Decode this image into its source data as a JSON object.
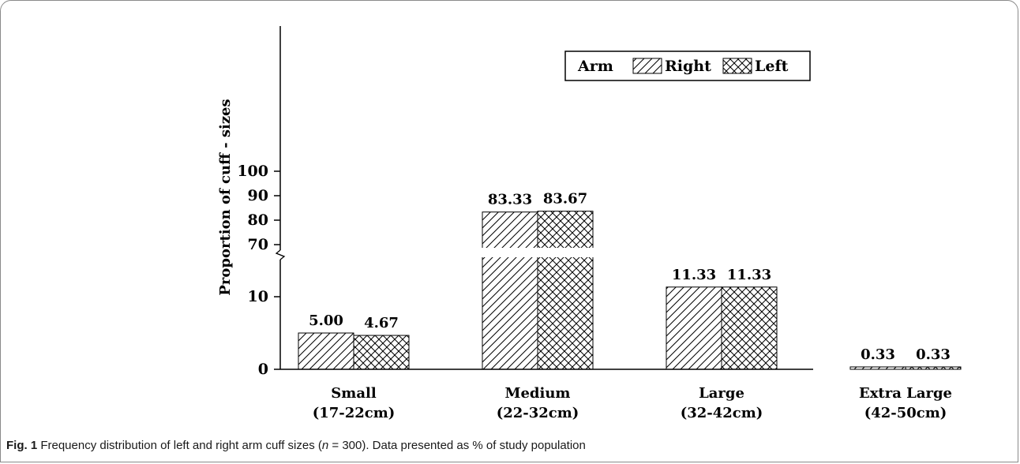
{
  "chart_data": {
    "type": "bar",
    "ylabel": "Proportion of cuff - sizes",
    "categories": [
      {
        "name": "Small",
        "range": "(17-22cm)"
      },
      {
        "name": "Medium",
        "range": "(22-32cm)"
      },
      {
        "name": "Large",
        "range": "(32-42cm)"
      },
      {
        "name": "Extra Large",
        "range": "(42-50cm)"
      }
    ],
    "series": [
      {
        "name": "Right",
        "values": [
          5.0,
          83.33,
          11.33,
          0.33
        ],
        "labels": [
          "5.00",
          "83.33",
          "11.33",
          "0.33"
        ]
      },
      {
        "name": "Left",
        "values": [
          4.67,
          83.67,
          11.33,
          0.33
        ],
        "labels": [
          "4.67",
          "83.67",
          "11.33",
          "0.33"
        ]
      }
    ],
    "legend_title": "Arm",
    "legend_position": "top-right",
    "y_axis": {
      "broken": true,
      "lower_range": [
        0,
        15
      ],
      "upper_range": [
        70,
        100
      ],
      "lower_ticks": [
        "0",
        "10"
      ],
      "upper_ticks": [
        "70",
        "80",
        "90",
        "100"
      ]
    },
    "grid": false
  },
  "caption": {
    "label": "Fig. 1",
    "text_before_n": " Frequency distribution of left and right arm cuff sizes (",
    "n_symbol": "n",
    "text_after_n": " = 300). Data presented as % of study population"
  }
}
